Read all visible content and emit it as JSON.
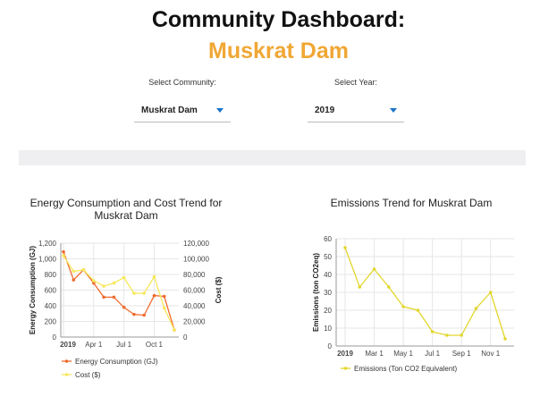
{
  "header": {
    "title_line1": "Community Dashboard:",
    "title_line2": "Muskrat Dam",
    "title_accent_color": "#f0a734"
  },
  "filters": {
    "community": {
      "label": "Select Community:",
      "value": "Muskrat Dam",
      "icon": "caret-down-icon"
    },
    "year": {
      "label": "Select Year:",
      "value": "2019",
      "icon": "caret-down-icon"
    }
  },
  "charts": {
    "energy": {
      "title_line1": "Energy Consumption and Cost Trend for",
      "title_line2": "Muskrat Dam",
      "legend": {
        "series1": "Energy Consumption (GJ)",
        "series2": "Cost ($)"
      }
    },
    "emissions": {
      "title": "Emissions Trend for Muskrat Dam",
      "legend": {
        "series1": "Emissions (Ton CO2 Equivalent)"
      }
    }
  },
  "chart_data": [
    {
      "type": "line",
      "title": "Energy Consumption and Cost Trend for Muskrat Dam",
      "x": [
        "2019-01",
        "2019-02",
        "2019-03",
        "2019-04",
        "2019-05",
        "2019-06",
        "2019-07",
        "2019-08",
        "2019-09",
        "2019-10",
        "2019-11",
        "2019-12"
      ],
      "x_ticks": [
        "2019",
        "Apr 1",
        "Jul 1",
        "Oct 1"
      ],
      "ylabel": "Energy Consumption (GJ)",
      "y2label": "Cost ($)",
      "ylim": [
        0,
        1200
      ],
      "y2lim": [
        0,
        120000
      ],
      "y_ticks": [
        "0",
        "200",
        "400",
        "600",
        "800",
        "1,000",
        "1,200"
      ],
      "y2_ticks": [
        "0",
        "20,000",
        "40,000",
        "60,000",
        "80,000",
        "100,000",
        "120,000"
      ],
      "grid": true,
      "legend_position": "bottom",
      "series": [
        {
          "name": "Energy Consumption (GJ)",
          "axis": "left",
          "color": "#f06a2e",
          "values": [
            1090,
            730,
            860,
            690,
            510,
            510,
            380,
            290,
            280,
            530,
            520,
            90
          ]
        },
        {
          "name": "Cost ($)",
          "axis": "right",
          "color": "#f7e85c",
          "values": [
            104000,
            84000,
            86000,
            72000,
            65000,
            69000,
            76000,
            56000,
            56000,
            77000,
            37000,
            9000
          ]
        }
      ]
    },
    {
      "type": "line",
      "title": "Emissions Trend for Muskrat Dam",
      "x": [
        "2019-01",
        "2019-02",
        "2019-03",
        "2019-04",
        "2019-05",
        "2019-06",
        "2019-07",
        "2019-08",
        "2019-09",
        "2019-10",
        "2019-11",
        "2019-12"
      ],
      "x_ticks": [
        "2019",
        "Mar 1",
        "May 1",
        "Jul 1",
        "Sep 1",
        "Nov 1"
      ],
      "ylabel": "Emissions (ton CO2eq)",
      "ylim": [
        0,
        60
      ],
      "y_ticks": [
        "0",
        "10",
        "20",
        "30",
        "40",
        "50",
        "60"
      ],
      "grid": true,
      "legend_position": "bottom",
      "series": [
        {
          "name": "Emissions (Ton CO2 Equivalent)",
          "color": "#e3d62d",
          "values": [
            55,
            33,
            43,
            33,
            22,
            20,
            8,
            6,
            6,
            21,
            30,
            4
          ]
        }
      ]
    }
  ]
}
